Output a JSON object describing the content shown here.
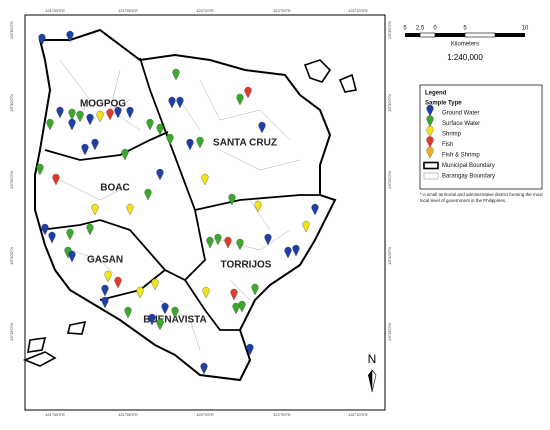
{
  "map": {
    "lon_labels": [
      "121°50'0\"E",
      "121°55'0\"E",
      "122°0'0\"E",
      "122°5'0\"E",
      "122°10'0\"E"
    ],
    "lat_labels": [
      "13°35'0\"N",
      "13°30'0\"N",
      "13°25'0\"N",
      "13°20'0\"N",
      "13°15'0\"N"
    ],
    "municipalities": [
      "MOGPOG",
      "SANTA CRUZ",
      "BOAC",
      "GASAN",
      "TORRIJOS",
      "BUENAVISTA"
    ],
    "scale_bar": {
      "ticks": [
        "5",
        "2.5",
        "0",
        "5",
        "10"
      ],
      "unit": "Kilometers",
      "ratio": "1:240,000"
    },
    "legend": {
      "title": "Legend",
      "subtitle": "Sample Type",
      "items": [
        "Ground Water",
        "Surface Water",
        "Shrimp",
        "Fish",
        "Fish & Shrimp",
        "Municipal Boundary",
        "Barangay Boundary"
      ]
    },
    "footnote": "* A small territorial and administrative district forming the most local level of government in the Philippines.",
    "north": "N"
  }
}
